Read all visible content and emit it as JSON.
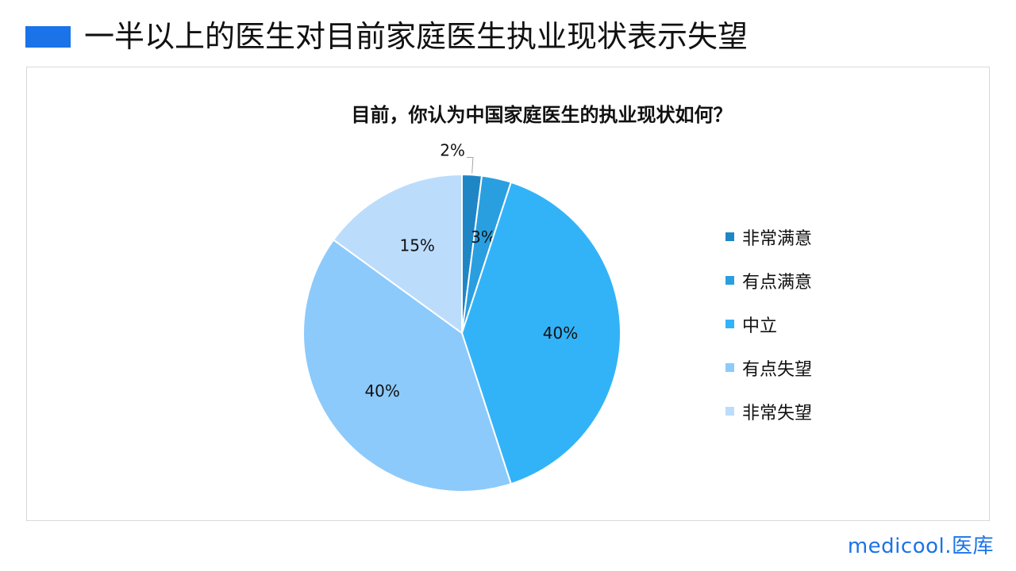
{
  "page": {
    "title": "一半以上的医生对目前家庭医生执业现状表示失望",
    "accent_color": "#1a73e8",
    "brand": "medicool.医库"
  },
  "chart_data": {
    "type": "pie",
    "title": "目前，你认为中国家庭医生的执业现状如何？",
    "start_angle_deg": 0,
    "direction": "clockwise",
    "legend_position": "right",
    "slices": [
      {
        "label": "非常满意",
        "value": 2,
        "display": "2%",
        "color": "#1f86c6"
      },
      {
        "label": "有点满意",
        "value": 3,
        "display": "3%",
        "color": "#2a9fe0"
      },
      {
        "label": "中立",
        "value": 40,
        "display": "40%",
        "color": "#33b3f7"
      },
      {
        "label": "有点失望",
        "value": 40,
        "display": "40%",
        "color": "#8ccafb"
      },
      {
        "label": "非常失望",
        "value": 15,
        "display": "15%",
        "color": "#bcdcfc"
      }
    ]
  }
}
